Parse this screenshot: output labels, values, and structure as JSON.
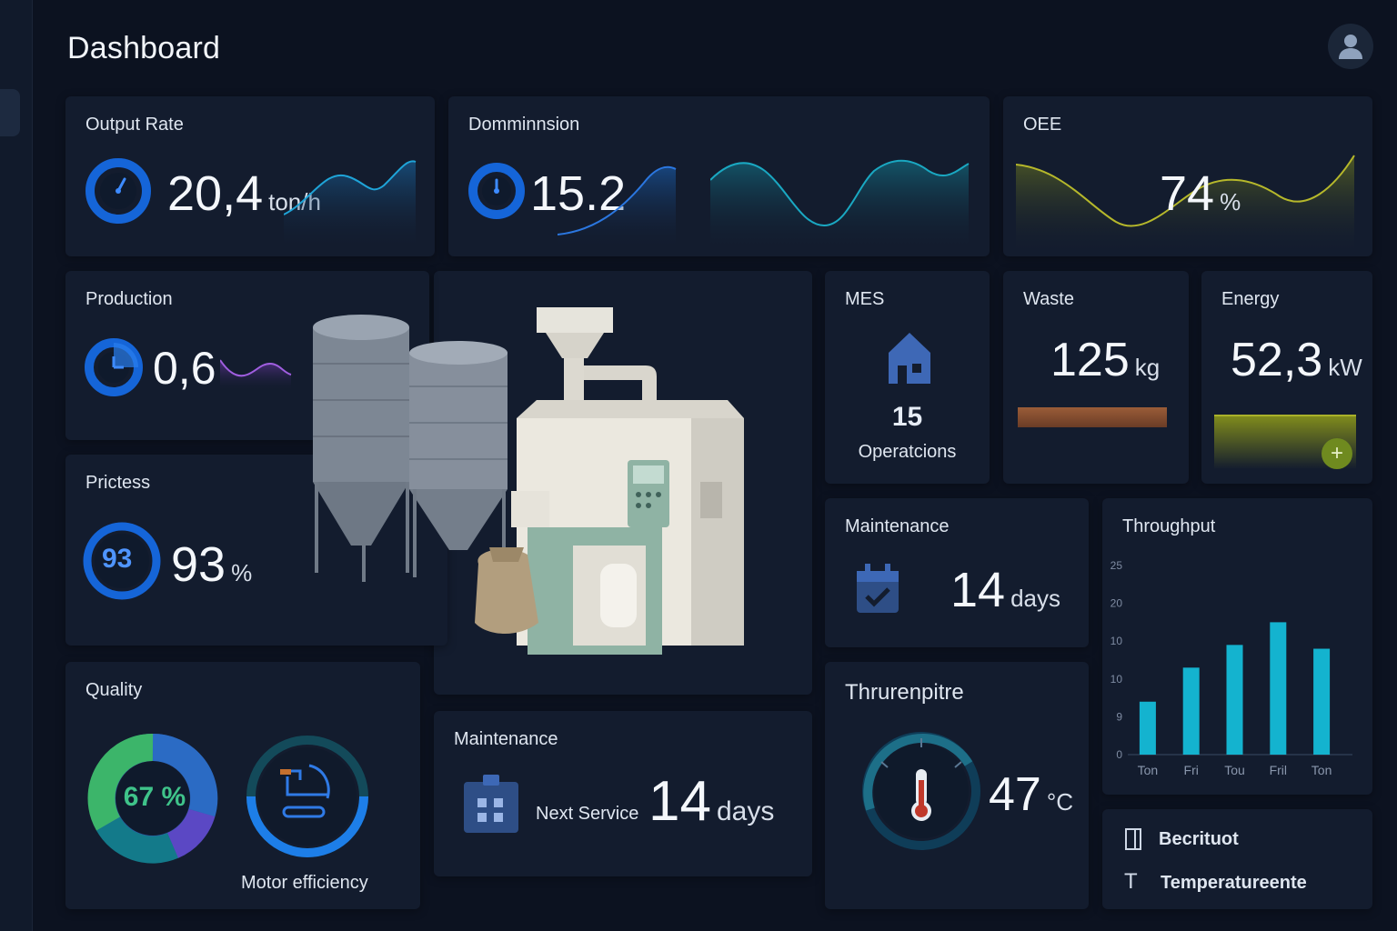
{
  "header": {
    "title": "Dashboard"
  },
  "cards": {
    "output_rate": {
      "title": "Output Rate",
      "value": "20,4",
      "unit": "ton/h"
    },
    "dominion": {
      "title": "Domminnsion",
      "value": "15.2"
    },
    "oee": {
      "title": "OEE",
      "value": "74",
      "unit": "%"
    },
    "production": {
      "title": "Production",
      "value": "0,6"
    },
    "process": {
      "title": "Prictess",
      "gauge_value": "93",
      "value": "93",
      "unit": "%"
    },
    "mes": {
      "title": "MES",
      "value": "15",
      "label": "Operatcions"
    },
    "waste": {
      "title": "Waste",
      "value": "125",
      "unit": "kg"
    },
    "energy": {
      "title": "Energy",
      "value": "52,3",
      "unit": "kW"
    },
    "maintenance_right": {
      "title": "Maintenance",
      "value": "14",
      "unit": "days"
    },
    "throughput": {
      "title": "Throughput",
      "chart_data": {
        "type": "bar",
        "categories": [
          "Ton",
          "Fri",
          "Tou",
          "Fril",
          "Ton"
        ],
        "values": [
          7,
          11.5,
          14.5,
          17.5,
          14
        ],
        "y_ticks": [
          "25",
          "20",
          "10",
          "10",
          "9",
          "0"
        ],
        "ylim": [
          0,
          25
        ],
        "color": "#14b3cf"
      }
    },
    "quality": {
      "title": "Quality",
      "value": "67 %",
      "motor_label": "Motor efficiency"
    },
    "maintenance_bottom": {
      "title": "Maintenance",
      "label": "Next Service",
      "value": "14",
      "unit": "days"
    },
    "temperature": {
      "title": "Thrurenpitre",
      "value": "47",
      "unit": "°C"
    },
    "legend": {
      "item1": "Becrituot",
      "item2": "Temperatureente"
    }
  }
}
